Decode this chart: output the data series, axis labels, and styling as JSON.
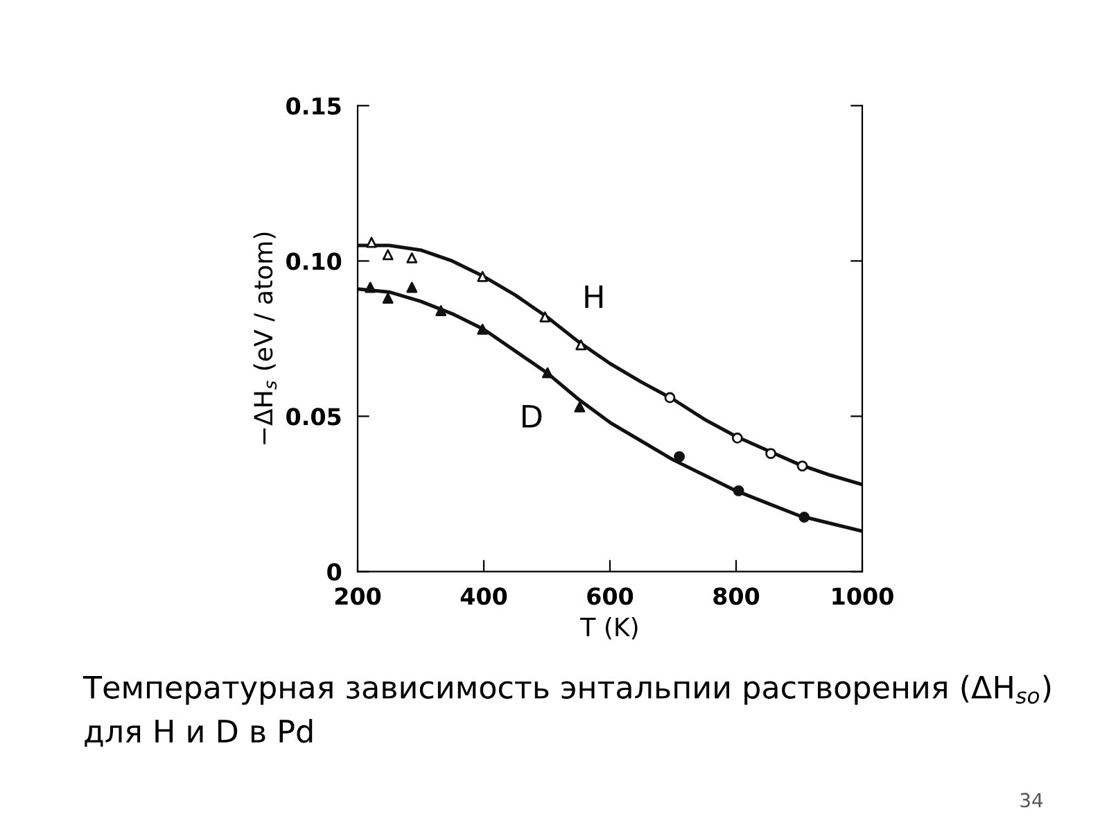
{
  "chart_data": {
    "type": "scatter",
    "xlabel": "T (K)",
    "ylabel": "−ΔH$_{s}$ (eV / atom)",
    "xlim": [
      200,
      1000
    ],
    "xticks": [
      200,
      400,
      600,
      800,
      1000
    ],
    "ylim": [
      0,
      0.15
    ],
    "yticks": [
      {
        "value": 0,
        "label": "0"
      },
      0.05,
      {
        "value": 0.1,
        "label": "0.10"
      },
      0.15
    ],
    "grid": false,
    "legend": false,
    "series": [
      {
        "type": "line",
        "name": "H",
        "color": "#111111",
        "marker": "none",
        "line_style": "solid",
        "x": [
          200,
          250,
          300,
          350,
          400,
          450,
          500,
          550,
          600,
          650,
          700,
          750,
          800,
          850,
          900,
          950,
          1000
        ],
        "values": [
          0.105,
          0.105,
          0.1035,
          0.1,
          0.095,
          0.089,
          0.082,
          0.074,
          0.067,
          0.061,
          0.0555,
          0.049,
          0.0435,
          0.039,
          0.0345,
          0.031,
          0.028
        ]
      },
      {
        "type": "line",
        "name": "D",
        "color": "#111111",
        "marker": "none",
        "line_style": "solid",
        "x": [
          200,
          250,
          300,
          350,
          400,
          450,
          500,
          550,
          600,
          650,
          700,
          750,
          800,
          850,
          900,
          950,
          1000
        ],
        "values": [
          0.091,
          0.09,
          0.087,
          0.083,
          0.078,
          0.071,
          0.064,
          0.0555,
          0.048,
          0.042,
          0.036,
          0.031,
          0.026,
          0.022,
          0.018,
          0.0155,
          0.013
        ]
      },
      {
        "color": "#ffffff",
        "marker": "triangle",
        "x": [
          222,
          248,
          286,
          398,
          497,
          554
        ],
        "values": [
          0.106,
          0.102,
          0.101,
          0.095,
          0.082,
          0.073
        ]
      },
      {
        "color": "#ffffff",
        "marker": "circle",
        "x": [
          695,
          802,
          855,
          905
        ],
        "values": [
          0.056,
          0.043,
          0.038,
          0.034
        ]
      },
      {
        "color": "#111111",
        "marker": "triangle",
        "x": [
          220,
          248,
          286,
          332,
          398,
          501,
          552
        ],
        "values": [
          0.0915,
          0.088,
          0.0915,
          0.084,
          0.078,
          0.064,
          0.053
        ]
      },
      {
        "color": "#111111",
        "marker": "circle",
        "x": [
          710,
          804,
          908
        ],
        "values": [
          0.037,
          0.026,
          0.0175
        ]
      }
    ],
    "annotations": [
      "Температурная зависимость энтальпии растворения (ΔH$_{so}$)\nдля H и D в Pd",
      "34"
    ]
  }
}
